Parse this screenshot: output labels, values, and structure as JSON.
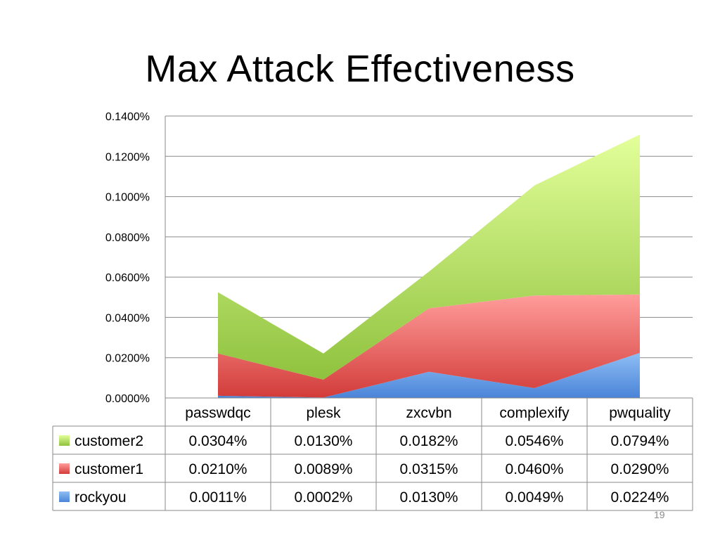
{
  "slide": {
    "title": "Max Attack Effectiveness",
    "page_number": "19"
  },
  "chart_data": {
    "type": "area",
    "stacked": true,
    "categories": [
      "passwdqc",
      "plesk",
      "zxcvbn",
      "complexify",
      "pwquality"
    ],
    "series": [
      {
        "name": "rockyou",
        "values": [
          0.0011,
          0.0002,
          0.013,
          0.0049,
          0.0224
        ],
        "labels": [
          "0.0011%",
          "0.0002%",
          "0.0130%",
          "0.0049%",
          "0.0224%"
        ],
        "color_top": "#8fbef5",
        "color_bottom": "#4a84d8"
      },
      {
        "name": "customer1",
        "values": [
          0.021,
          0.0089,
          0.0315,
          0.046,
          0.029
        ],
        "labels": [
          "0.0210%",
          "0.0089%",
          "0.0315%",
          "0.0460%",
          "0.0290%"
        ],
        "color_top": "#ff9d9b",
        "color_bottom": "#d23c39"
      },
      {
        "name": "customer2",
        "values": [
          0.0304,
          0.013,
          0.0182,
          0.0546,
          0.0794
        ],
        "labels": [
          "0.0304%",
          "0.0130%",
          "0.0182%",
          "0.0546%",
          "0.0794%"
        ],
        "color_top": "#e3ff9a",
        "color_bottom": "#8fc23e"
      }
    ],
    "table_row_order": [
      "customer2",
      "customer1",
      "rockyou"
    ],
    "y_ticks": [
      "0.0000%",
      "0.0200%",
      "0.0400%",
      "0.0600%",
      "0.0800%",
      "0.1000%",
      "0.1200%",
      "0.1400%"
    ],
    "ylim": [
      0,
      0.14
    ],
    "grid": true,
    "legend_placement": "data table keys",
    "colors": {
      "gridline": "#8a8a8a",
      "table_border": "#8a8a8a"
    }
  }
}
